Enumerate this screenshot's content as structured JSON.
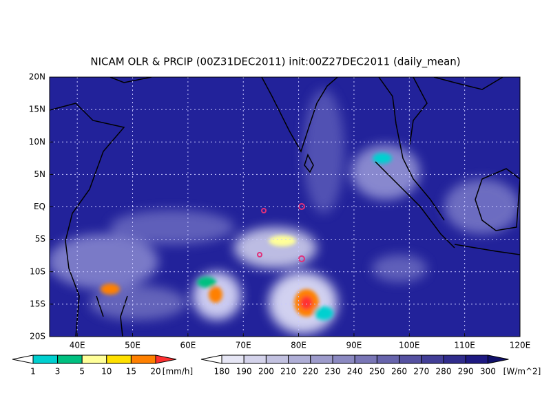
{
  "header": {
    "title": "NICAM OLR & PRCIP (00Z31DEC2011) init:00Z27DEC2011 (daily_mean)"
  },
  "map": {
    "lat_labels": [
      "20N",
      "15N",
      "10N",
      "5N",
      "EQ",
      "5S",
      "10S",
      "15S",
      "20S"
    ],
    "lon_labels": [
      "40E",
      "50E",
      "60E",
      "70E",
      "80E",
      "90E",
      "100E",
      "110E",
      "120E"
    ]
  },
  "precip_colorbar": {
    "levels": [
      1,
      3,
      5,
      10,
      15,
      20
    ],
    "unit": "[mm/h]"
  },
  "olr_colorbar": {
    "levels": [
      180,
      190,
      200,
      210,
      220,
      230,
      240,
      250,
      260,
      270,
      280,
      290,
      300
    ],
    "unit": "[W/m^2]"
  }
}
